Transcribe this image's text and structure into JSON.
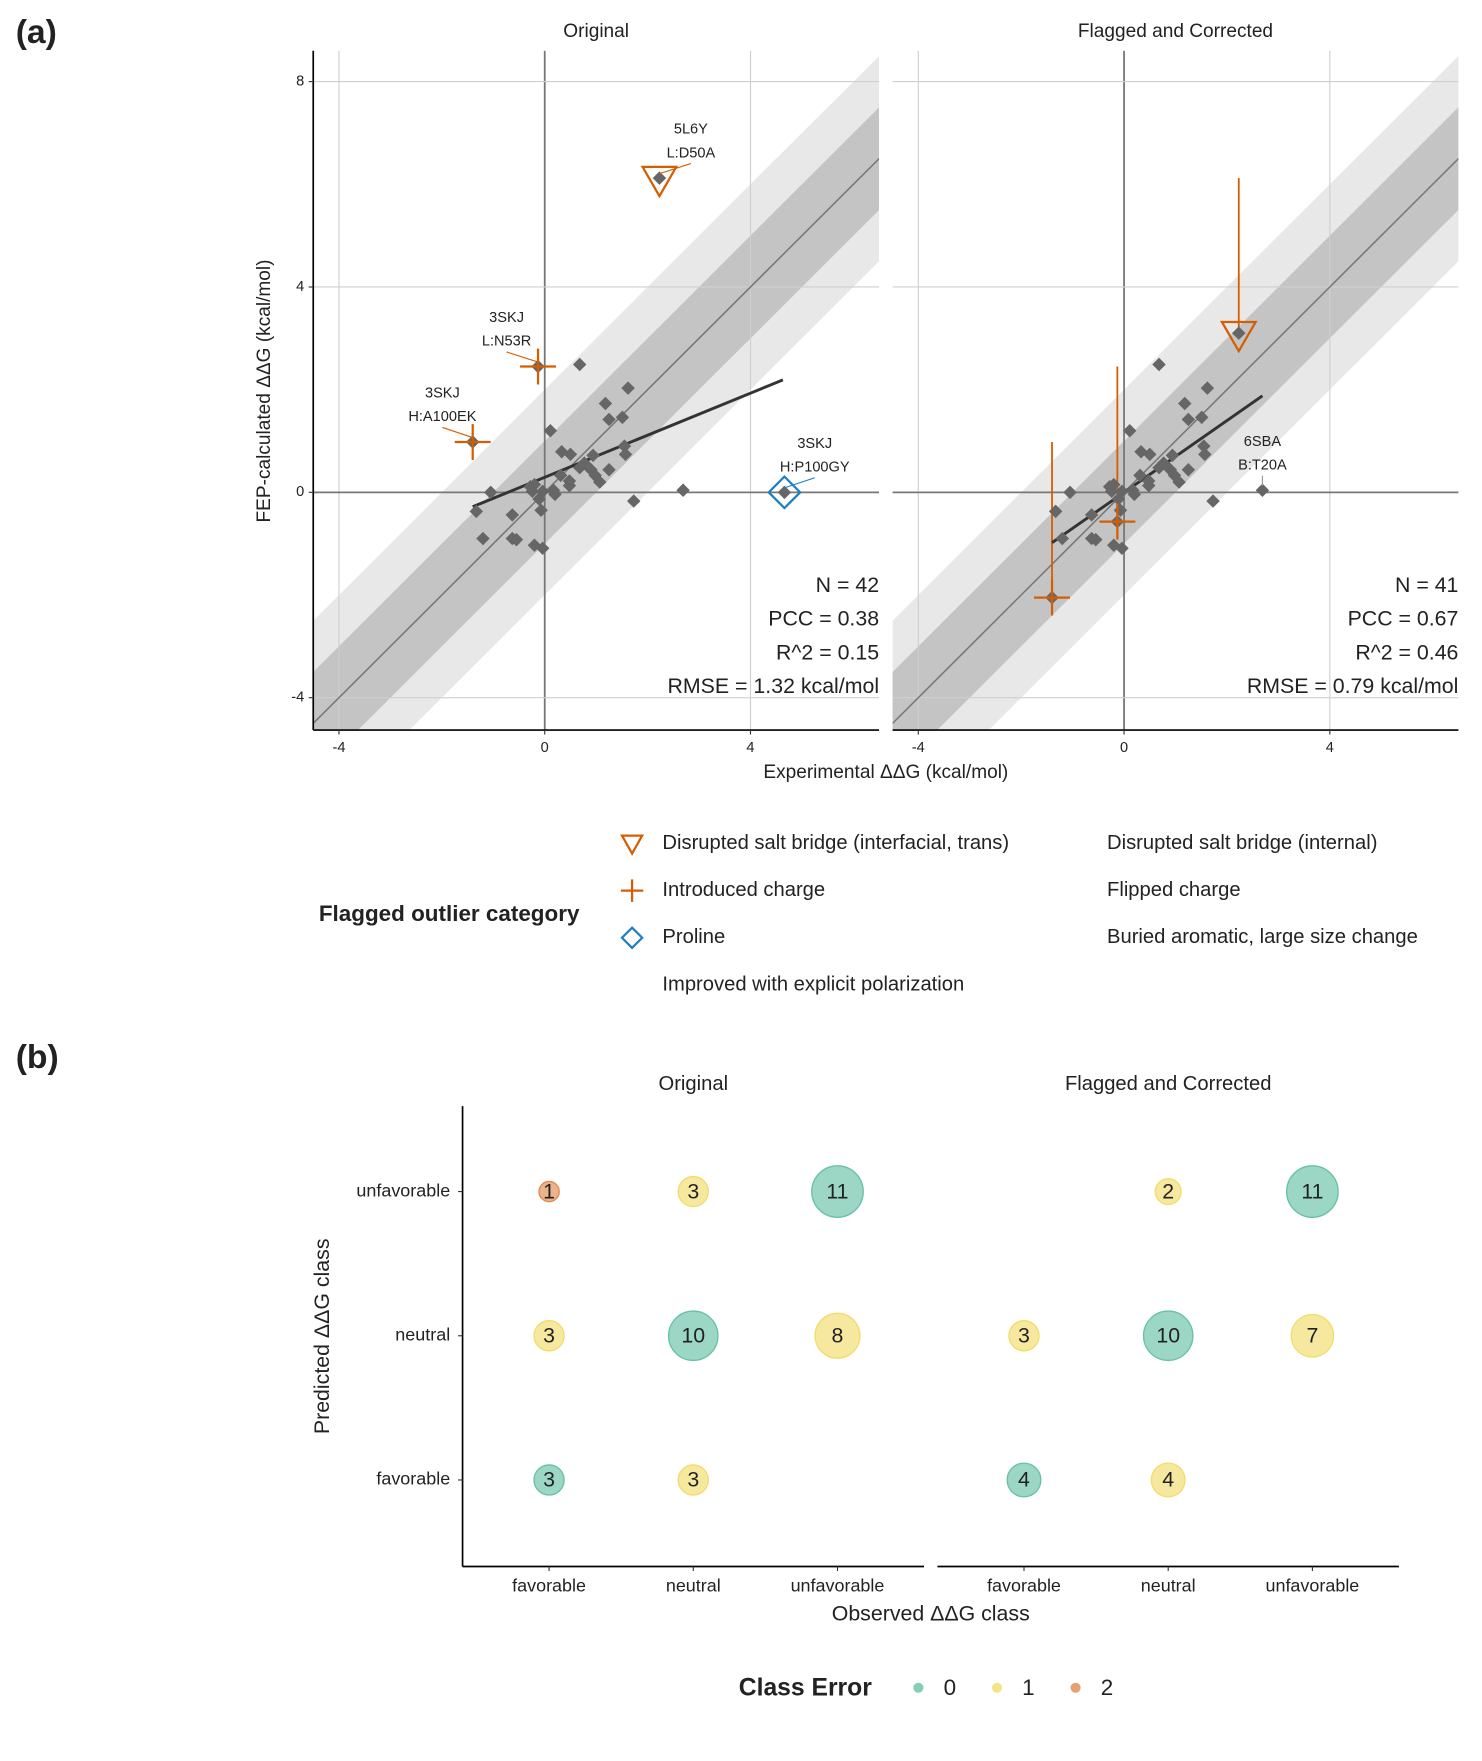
{
  "chart_data": [
    {
      "type": "scatter",
      "panel_label": "(a)",
      "x_label": "Experimental ΔΔG (kcal/mol)",
      "y_label": "FEP-calculated ΔΔG (kcal/mol)",
      "xlim": [
        -4.5,
        6.5
      ],
      "ylim": [
        -4.63,
        8.6
      ],
      "xticks": [
        -4,
        0,
        4
      ],
      "yticks": [
        -4,
        0,
        4,
        8
      ],
      "grid": true,
      "identity_line": true,
      "bands": [
        1,
        2
      ],
      "point_color": "#666666",
      "fit_color": "#333333",
      "facets": [
        {
          "title": "Original",
          "x": [
            0.68,
            1.18,
            1.62,
            1.25,
            1.51,
            0.11,
            1.55,
            1.57,
            0.94,
            0.33,
            0.5,
            0.77,
            0.9,
            1.25,
            0.98,
            1.07,
            0.31,
            0.48,
            0.48,
            0.17,
            0.2,
            -0.04,
            -0.2,
            -0.24,
            -0.11,
            -0.07,
            -1.05,
            -1.33,
            -0.63,
            -1.2,
            -0.63,
            -0.55,
            -0.2,
            -0.04,
            1.73,
            2.69,
            -0.28,
            0.68
          ],
          "y": [
            2.49,
            1.73,
            2.03,
            1.42,
            1.46,
            1.2,
            0.9,
            0.74,
            0.72,
            0.79,
            0.74,
            0.57,
            0.44,
            0.44,
            0.33,
            0.2,
            0.33,
            0.22,
            0.13,
            0.04,
            -0.04,
            0.02,
            0.15,
            0.02,
            -0.13,
            -0.35,
            0.0,
            -0.37,
            -0.44,
            -0.9,
            -0.9,
            -0.92,
            -1.03,
            -1.09,
            -0.17,
            0.04,
            0.11,
            0.48
          ],
          "fit": {
            "x": [
              -1.4,
              4.63
            ],
            "y": [
              -0.28,
              2.19
            ]
          },
          "stats": [
            "N = 42",
            "PCC = 0.38",
            "R^2 = 0.15",
            "RMSE = 1.32 kcal/mol"
          ],
          "outliers": [
            {
              "label": [
                "5L6Y",
                "L:D50A"
              ],
              "x": 2.23,
              "y": 6.12,
              "category": 0
            },
            {
              "label": [
                "3SKJ",
                "L:N53R"
              ],
              "x": -0.13,
              "y": 2.45,
              "category": 1
            },
            {
              "label": [
                "3SKJ",
                "H:A100EK"
              ],
              "x": -1.4,
              "y": 0.98,
              "category": 1
            },
            {
              "label": [
                "3SKJ",
                "H:P100GY"
              ],
              "x": 4.66,
              "y": 0.0,
              "category": 2
            }
          ]
        },
        {
          "title": "Flagged and Corrected",
          "x": [
            0.68,
            1.18,
            1.62,
            1.25,
            1.51,
            0.11,
            1.55,
            1.57,
            0.94,
            0.33,
            0.5,
            0.77,
            0.9,
            1.25,
            0.98,
            1.07,
            0.31,
            0.48,
            0.48,
            0.17,
            0.2,
            -0.04,
            -0.2,
            -0.24,
            -0.11,
            -0.07,
            -1.05,
            -1.33,
            -0.63,
            -1.2,
            -0.63,
            -0.55,
            -0.2,
            -0.04,
            1.73,
            -0.28,
            0.68
          ],
          "y": [
            2.49,
            1.73,
            2.03,
            1.42,
            1.46,
            1.2,
            0.9,
            0.74,
            0.72,
            0.79,
            0.74,
            0.57,
            0.44,
            0.44,
            0.33,
            0.2,
            0.33,
            0.22,
            0.13,
            0.04,
            -0.04,
            0.02,
            0.15,
            0.02,
            -0.13,
            -0.35,
            0.0,
            -0.37,
            -0.44,
            -0.9,
            -0.9,
            -0.92,
            -1.03,
            -1.09,
            -0.17,
            0.11,
            0.48
          ],
          "fit": {
            "x": [
              -1.4,
              2.69
            ],
            "y": [
              -0.98,
              1.88
            ]
          },
          "stats": [
            "N = 41",
            "PCC = 0.67",
            "R^2 = 0.46",
            "RMSE = 0.79 kcal/mol"
          ],
          "outliers": [
            {
              "x": 2.23,
              "y": 3.1,
              "y_from": 6.12,
              "category": 0
            },
            {
              "x": -0.13,
              "y": -0.57,
              "y_from": 2.45,
              "category": 1
            },
            {
              "x": -1.4,
              "y": -2.05,
              "y_from": 0.98,
              "category": 1
            },
            {
              "label": [
                "6SBA",
                "B:T20A"
              ],
              "x": 2.69,
              "y": 0.04,
              "category": null
            }
          ]
        }
      ],
      "legend": {
        "title": "Flagged outlier category",
        "entries": [
          {
            "name": "Disrupted salt bridge (interfacial, trans)",
            "symbol": "triangle",
            "color": "#d55e00"
          },
          {
            "name": "Introduced charge",
            "symbol": "plus",
            "color": "#d55e00"
          },
          {
            "name": "Proline",
            "symbol": "diamond",
            "color": "#1f7fc0"
          },
          {
            "name": "Improved with explicit polarization"
          },
          {
            "name": "Disrupted salt bridge (internal)"
          },
          {
            "name": "Flipped charge"
          },
          {
            "name": "Buried aromatic, large size change"
          }
        ]
      }
    },
    {
      "type": "bubble",
      "panel_label": "(b)",
      "x_label": "Observed ΔΔG class",
      "y_label": "Predicted ΔΔG class",
      "categories": [
        "favorable",
        "neutral",
        "unfavorable"
      ],
      "facets": [
        {
          "title": "Original",
          "counts": [
            [
              3,
              3,
              null
            ],
            [
              3,
              10,
              8
            ],
            [
              1,
              3,
              11
            ]
          ],
          "class_error": [
            [
              0,
              1,
              null
            ],
            [
              1,
              0,
              1
            ],
            [
              2,
              1,
              0
            ]
          ]
        },
        {
          "title": "Flagged and Corrected",
          "counts": [
            [
              4,
              4,
              null
            ],
            [
              3,
              10,
              7
            ],
            [
              null,
              2,
              11
            ]
          ],
          "class_error": [
            [
              0,
              1,
              null
            ],
            [
              1,
              0,
              1
            ],
            [
              null,
              1,
              0
            ]
          ]
        }
      ],
      "legend": {
        "title": "Class Error",
        "values": [
          0,
          1,
          2
        ],
        "colors": [
          "#66c2a5",
          "#f2dc6b",
          "#e08a4f"
        ]
      }
    }
  ]
}
